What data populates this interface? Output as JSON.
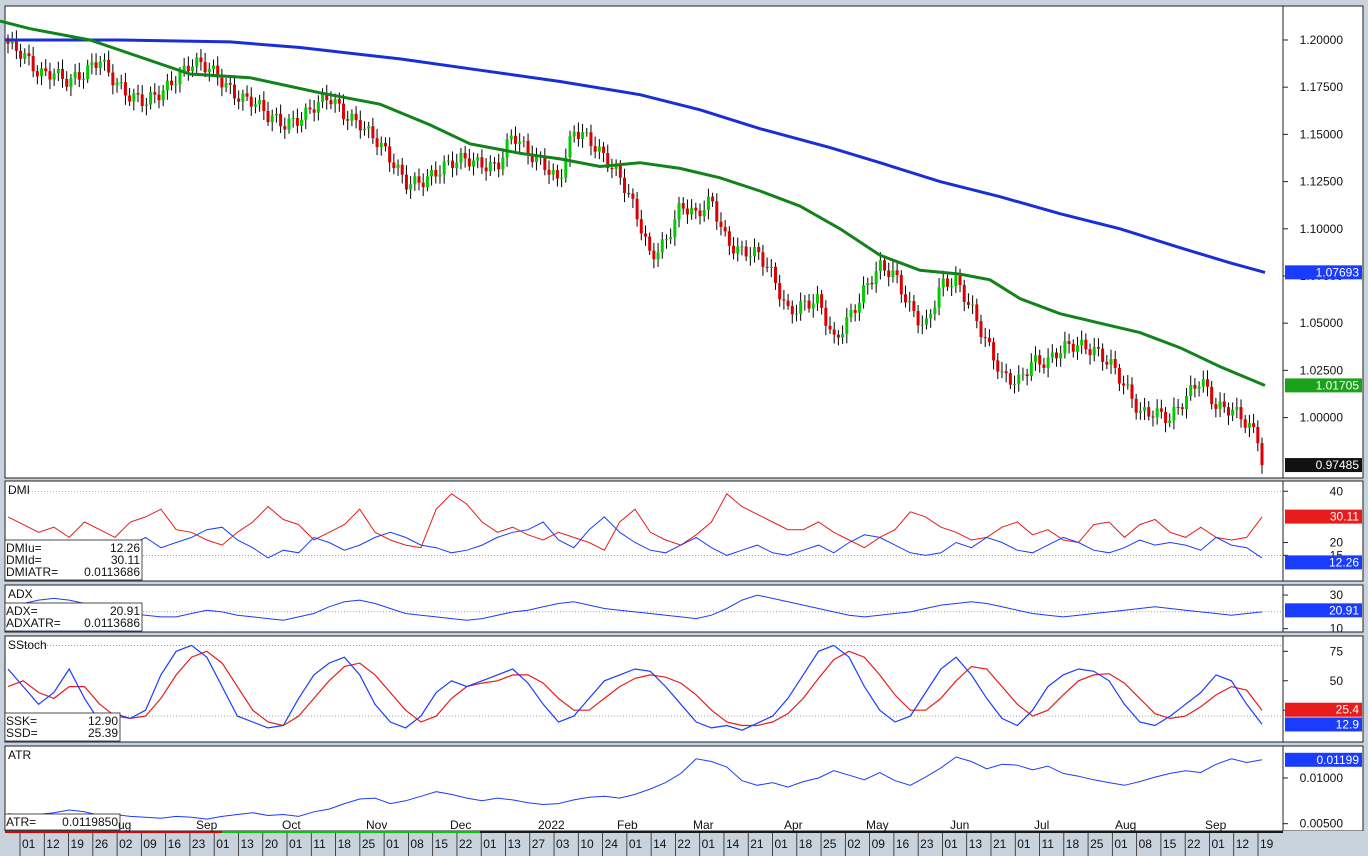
{
  "chart_data": {
    "type": "line",
    "title": "",
    "main": {
      "ylim": [
        0.968,
        1.218
      ],
      "y_ticks": [
        1.2,
        1.175,
        1.15,
        1.125,
        1.1,
        1.075,
        1.05,
        1.025,
        1.0
      ],
      "y_tick_labels": [
        "1.20000",
        "1.17500",
        "1.15000",
        "1.12500",
        "1.10000",
        "1.07500",
        "1.05000",
        "1.02500",
        "1.00000"
      ],
      "candle_colors": {
        "up": "#00cc00",
        "down": "#dd0000"
      },
      "close_anchors": [
        1.198,
        1.19,
        1.182,
        1.185,
        1.178,
        1.18,
        1.19,
        1.18,
        1.17,
        1.165,
        1.172,
        1.182,
        1.188,
        1.184,
        1.178,
        1.172,
        1.168,
        1.158,
        1.155,
        1.16,
        1.165,
        1.168,
        1.16,
        1.158,
        1.148,
        1.135,
        1.124,
        1.127,
        1.13,
        1.133,
        1.137,
        1.136,
        1.133,
        1.148,
        1.14,
        1.137,
        1.125,
        1.15,
        1.147,
        1.14,
        1.128,
        1.108,
        1.085,
        1.095,
        1.113,
        1.105,
        1.115,
        1.095,
        1.088,
        1.085,
        1.075,
        1.058,
        1.06,
        1.06,
        1.04,
        1.055,
        1.068,
        1.078,
        1.075,
        1.06,
        1.048,
        1.068,
        1.072,
        1.06,
        1.04,
        1.02,
        1.018,
        1.032,
        1.03,
        1.035,
        1.038,
        1.038,
        1.03,
        1.015,
        1.002,
        1.005,
        1.0,
        1.008,
        1.02,
        1.008,
        1.005,
        0.995,
        0.985
      ],
      "ma_green": [
        [
          0,
          1.21
        ],
        [
          30,
          1.206
        ],
        [
          90,
          1.2
        ],
        [
          190,
          1.182
        ],
        [
          250,
          1.18
        ],
        [
          320,
          1.172
        ],
        [
          380,
          1.166
        ],
        [
          430,
          1.155
        ],
        [
          470,
          1.145
        ],
        [
          520,
          1.14
        ],
        [
          560,
          1.137
        ],
        [
          600,
          1.133
        ],
        [
          640,
          1.135
        ],
        [
          680,
          1.132
        ],
        [
          720,
          1.127
        ],
        [
          760,
          1.12
        ],
        [
          800,
          1.112
        ],
        [
          840,
          1.1
        ],
        [
          880,
          1.086
        ],
        [
          920,
          1.078
        ],
        [
          960,
          1.076
        ],
        [
          990,
          1.073
        ],
        [
          1020,
          1.063
        ],
        [
          1060,
          1.055
        ],
        [
          1100,
          1.05
        ],
        [
          1140,
          1.045
        ],
        [
          1180,
          1.037
        ],
        [
          1220,
          1.027
        ],
        [
          1265,
          1.017
        ]
      ],
      "ma_blue": [
        [
          5,
          1.2
        ],
        [
          60,
          1.2
        ],
        [
          120,
          1.2
        ],
        [
          230,
          1.199
        ],
        [
          300,
          1.196
        ],
        [
          400,
          1.19
        ],
        [
          480,
          1.184
        ],
        [
          560,
          1.178
        ],
        [
          640,
          1.171
        ],
        [
          700,
          1.163
        ],
        [
          760,
          1.153
        ],
        [
          830,
          1.143
        ],
        [
          880,
          1.135
        ],
        [
          940,
          1.125
        ],
        [
          1000,
          1.117
        ],
        [
          1060,
          1.108
        ],
        [
          1120,
          1.1
        ],
        [
          1180,
          1.09
        ],
        [
          1230,
          1.082
        ],
        [
          1265,
          1.0769
        ]
      ],
      "last_labels": [
        {
          "text": "1.07693",
          "value": 1.07693,
          "color": "#1a3cff"
        },
        {
          "text": "1.01705",
          "value": 1.01705,
          "color": "#1aa31a"
        },
        {
          "text": "0.97485",
          "value": 0.97485,
          "color": "#111111"
        }
      ]
    },
    "dmi": {
      "name": "DMI",
      "ylim": [
        5,
        44
      ],
      "y_ticks": [
        40,
        20,
        15
      ],
      "y_tick_labels": [
        "40",
        "20",
        "15"
      ],
      "ref_lines": [
        40,
        15
      ],
      "readout": [
        {
          "label": "DMIu=",
          "value": "12.26"
        },
        {
          "label": "DMId=",
          "value": "30.11"
        },
        {
          "label": "DMIATR=",
          "value": "0.0113686"
        }
      ],
      "red_series": [
        30,
        27,
        24,
        26,
        22,
        28,
        25,
        22,
        28,
        30,
        33,
        25,
        24,
        21,
        19,
        24,
        28,
        34,
        29,
        27,
        21,
        24,
        27,
        33,
        24,
        21,
        19,
        18,
        33,
        39,
        35,
        28,
        24,
        26,
        23,
        21,
        24,
        22,
        20,
        17,
        28,
        33,
        24,
        21,
        19,
        23,
        28,
        39,
        34,
        31,
        28,
        25,
        25,
        28,
        24,
        21,
        18,
        22,
        25,
        32,
        30,
        26,
        24,
        21,
        22,
        26,
        28,
        23,
        25,
        21,
        20,
        27,
        28,
        22,
        27,
        29,
        24,
        22,
        26,
        22,
        21,
        22,
        30
      ],
      "blue_series": [
        16,
        17,
        15,
        18,
        16,
        21,
        18,
        16,
        19,
        22,
        18,
        20,
        22,
        25,
        26,
        21,
        18,
        14,
        17,
        16,
        22,
        20,
        17,
        19,
        22,
        24,
        22,
        19,
        18,
        16,
        17,
        19,
        22,
        24,
        25,
        28,
        21,
        18,
        25,
        30,
        24,
        20,
        17,
        16,
        19,
        22,
        18,
        15,
        17,
        19,
        16,
        15,
        17,
        19,
        16,
        20,
        23,
        22,
        19,
        16,
        15,
        16,
        20,
        18,
        22,
        20,
        17,
        16,
        19,
        22,
        20,
        17,
        16,
        18,
        21,
        19,
        20,
        19,
        17,
        22,
        19,
        18,
        14
      ],
      "last_labels": [
        {
          "text": "30.11",
          "value": 30.11,
          "color": "#e81c1c"
        },
        {
          "text": "12.26",
          "value": 12.26,
          "color": "#1a3cff"
        }
      ]
    },
    "adx": {
      "name": "ADX",
      "ylim": [
        8,
        36
      ],
      "y_ticks": [
        30,
        10
      ],
      "y_tick_labels": [
        "30",
        "10"
      ],
      "ref_lines": [
        20
      ],
      "readout": [
        {
          "label": "ADX=",
          "value": "20.91"
        },
        {
          "label": "ADXATR=",
          "value": "0.0113686"
        }
      ],
      "series": [
        22,
        25,
        27,
        28,
        27,
        25,
        22,
        20,
        19,
        18,
        17,
        17,
        19,
        21,
        20,
        18,
        17,
        16,
        15,
        17,
        19,
        23,
        26,
        27,
        25,
        22,
        19,
        18,
        17,
        16,
        15,
        16,
        18,
        20,
        21,
        23,
        25,
        26,
        24,
        22,
        21,
        20,
        19,
        18,
        17,
        16,
        18,
        22,
        27,
        30,
        28,
        26,
        24,
        22,
        20,
        18,
        17,
        18,
        19,
        20,
        22,
        24,
        25,
        26,
        25,
        23,
        21,
        19,
        18,
        17,
        18,
        19,
        20,
        21,
        22,
        23,
        22,
        21,
        20,
        19,
        18,
        19,
        20
      ],
      "last_labels": [
        {
          "text": "20.91",
          "value": 20.91,
          "color": "#1a3cff"
        }
      ]
    },
    "sstoch": {
      "name": "SStoch",
      "ylim": [
        -2,
        88
      ],
      "y_ticks": [
        75,
        50,
        25
      ],
      "y_tick_labels": [
        "75",
        "50",
        "25"
      ],
      "ref_lines": [
        80,
        20
      ],
      "readout": [
        {
          "label": "SSK=",
          "value": "12.90"
        },
        {
          "label": "SSD=",
          "value": "25.39"
        }
      ],
      "k_series": [
        60,
        45,
        30,
        40,
        60,
        35,
        15,
        22,
        18,
        25,
        55,
        75,
        80,
        70,
        45,
        20,
        15,
        10,
        12,
        35,
        55,
        65,
        70,
        55,
        30,
        15,
        10,
        20,
        40,
        50,
        45,
        50,
        55,
        60,
        48,
        30,
        15,
        20,
        35,
        50,
        55,
        60,
        58,
        45,
        30,
        15,
        10,
        12,
        8,
        14,
        20,
        35,
        55,
        75,
        80,
        70,
        45,
        25,
        15,
        20,
        40,
        60,
        70,
        55,
        35,
        18,
        12,
        25,
        45,
        55,
        60,
        58,
        50,
        30,
        15,
        12,
        20,
        30,
        40,
        55,
        50,
        30,
        13
      ],
      "d_series": [
        45,
        50,
        40,
        35,
        45,
        45,
        30,
        20,
        18,
        20,
        35,
        55,
        70,
        75,
        65,
        45,
        25,
        15,
        12,
        20,
        35,
        50,
        62,
        65,
        55,
        40,
        25,
        15,
        20,
        35,
        45,
        48,
        50,
        55,
        55,
        48,
        35,
        25,
        25,
        35,
        45,
        52,
        55,
        53,
        48,
        38,
        25,
        15,
        12,
        12,
        15,
        22,
        35,
        52,
        68,
        75,
        70,
        55,
        38,
        25,
        25,
        35,
        50,
        62,
        60,
        45,
        30,
        20,
        25,
        38,
        50,
        55,
        56,
        48,
        35,
        22,
        18,
        20,
        28,
        38,
        45,
        42,
        25
      ],
      "last_labels": [
        {
          "text": "25.4",
          "value": 25.4,
          "color": "#e81c1c"
        },
        {
          "text": "12.9",
          "value": 12.9,
          "color": "#1a3cff"
        }
      ]
    },
    "atr": {
      "name": "ATR",
      "ylim": [
        0.0042,
        0.0135
      ],
      "y_ticks": [
        0.01,
        0.005
      ],
      "y_tick_labels": [
        "0.01000",
        "0.00500"
      ],
      "readout": [
        {
          "label": "ATR=",
          "value": "0.0119850"
        }
      ],
      "series": [
        0.0061,
        0.0058,
        0.006,
        0.0062,
        0.0065,
        0.0063,
        0.0059,
        0.006,
        0.0058,
        0.0057,
        0.0056,
        0.0058,
        0.0057,
        0.0055,
        0.0058,
        0.006,
        0.0062,
        0.0059,
        0.006,
        0.0058,
        0.0063,
        0.0066,
        0.0072,
        0.0077,
        0.0078,
        0.0072,
        0.0075,
        0.008,
        0.0085,
        0.0082,
        0.0078,
        0.0075,
        0.0078,
        0.0076,
        0.0073,
        0.0071,
        0.0072,
        0.0076,
        0.0079,
        0.008,
        0.0078,
        0.0082,
        0.0088,
        0.0095,
        0.0105,
        0.0121,
        0.0118,
        0.0112,
        0.0097,
        0.0092,
        0.0095,
        0.009,
        0.0096,
        0.01,
        0.0108,
        0.0103,
        0.0098,
        0.0106,
        0.0097,
        0.0092,
        0.0101,
        0.0111,
        0.0123,
        0.0118,
        0.011,
        0.0115,
        0.0114,
        0.0109,
        0.0113,
        0.0105,
        0.0102,
        0.0098,
        0.0095,
        0.0092,
        0.0096,
        0.0101,
        0.0105,
        0.0108,
        0.0106,
        0.0115,
        0.0121,
        0.0117,
        0.012
      ],
      "last_labels": [
        {
          "text": "0.01199",
          "value": 0.01199,
          "color": "#1a3cff"
        }
      ]
    },
    "x_axis": {
      "day_ticks": [
        "01",
        "12",
        "19",
        "26",
        "02",
        "09",
        "16",
        "23",
        "01",
        "13",
        "20",
        "01",
        "11",
        "18",
        "25",
        "01",
        "08",
        "15",
        "22",
        "01",
        "13",
        "27",
        "03",
        "10",
        "24",
        "01",
        "14",
        "22",
        "01",
        "14",
        "21",
        "01",
        "18",
        "25",
        "02",
        "09",
        "16",
        "23",
        "01",
        "13",
        "21",
        "01",
        "11",
        "18",
        "25",
        "01",
        "08",
        "15",
        "22",
        "01",
        "12",
        "19"
      ],
      "month_labels": [
        "ug",
        "Sep",
        "Oct",
        "Nov",
        "Dec",
        "2022",
        "Feb",
        "Mar",
        "Apr",
        "May",
        "Jun",
        "Jul",
        "Aug",
        "Sep"
      ]
    }
  }
}
